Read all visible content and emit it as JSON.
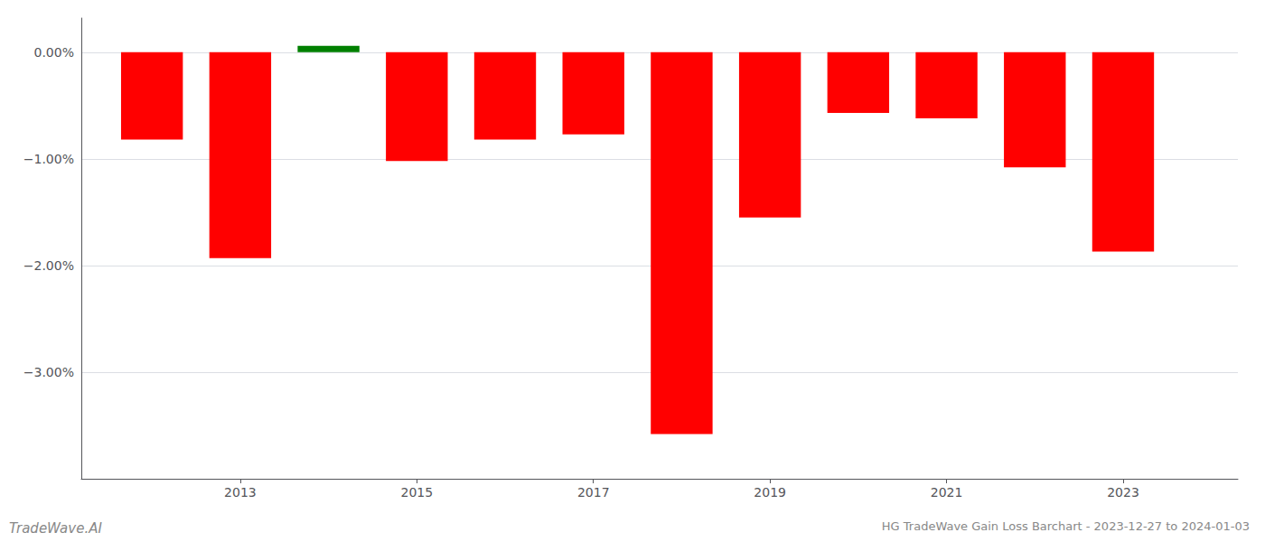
{
  "chart_data": {
    "type": "bar",
    "title": "HG TradeWave Gain Loss Barchart - 2023-12-27 to 2024-01-03",
    "annotations": [
      "TradeWave.AI"
    ],
    "x": [
      2012,
      2013,
      2014,
      2015,
      2016,
      2017,
      2018,
      2019,
      2020,
      2021,
      2022,
      2023
    ],
    "values": [
      -0.82,
      -1.93,
      0.06,
      -1.02,
      -0.82,
      -0.77,
      -3.58,
      -1.55,
      -0.57,
      -0.62,
      -1.08,
      -1.87
    ],
    "colors": [
      "#ff0000",
      "#ff0000",
      "#008000",
      "#ff0000",
      "#ff0000",
      "#ff0000",
      "#ff0000",
      "#ff0000",
      "#ff0000",
      "#ff0000",
      "#ff0000",
      "#ff0000"
    ],
    "xlim": [
      2011.2,
      2024.3
    ],
    "xticks": [
      2013,
      2015,
      2017,
      2019,
      2021,
      2023
    ],
    "ylim": [
      -4.0,
      0.32
    ],
    "yticks": [
      {
        "value": 0.0,
        "label": "0.00%"
      },
      {
        "value": -1.0,
        "label": "−1.00%"
      },
      {
        "value": -2.0,
        "label": "−2.00%"
      },
      {
        "value": -3.0,
        "label": "−3.00%"
      }
    ],
    "grid": true
  }
}
